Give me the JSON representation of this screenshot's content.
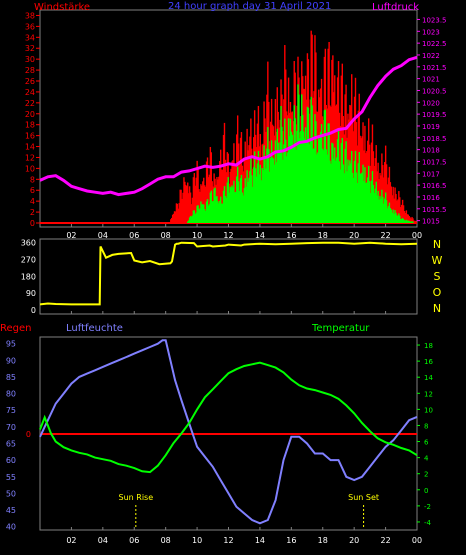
{
  "colors": {
    "background": "#000000",
    "frame": "#808080",
    "red": "#ff0000",
    "green": "#00ff00",
    "magenta": "#ff00ff",
    "yellow": "#ffff00",
    "blue": "#8080ff",
    "blue_label": "#4040ff",
    "tick_label": "#ffffff"
  },
  "chart_data": [
    {
      "type": "bar",
      "title": "24 hour graph day 31 April 2021",
      "left_axis_label": "Windstärke",
      "right_axis_label": "Luftdruck",
      "x_ticks": [
        "02",
        "04",
        "06",
        "08",
        "10",
        "12",
        "14",
        "16",
        "18",
        "20",
        "22",
        "00"
      ],
      "xlim": [
        0,
        24
      ],
      "y_left_ticks": [
        "0",
        "2",
        "4",
        "6",
        "8",
        "10",
        "12",
        "14",
        "16",
        "18",
        "20",
        "22",
        "24",
        "26",
        "28",
        "30",
        "32",
        "34",
        "36",
        "38"
      ],
      "ylim_left": [
        0,
        39
      ],
      "y_right_ticks": [
        "1015",
        "1015.5",
        "1016",
        "1016.5",
        "1017",
        "1017.5",
        "1018",
        "1018.5",
        "1019",
        "1019.5",
        "1020",
        "1020.5",
        "1021",
        "1021.5",
        "1022",
        "1022.5",
        "1023",
        "1023.5"
      ],
      "ylim_right": [
        1014.9,
        1023.9
      ],
      "series": [
        {
          "kind": "wind_gust_red",
          "x": [
            0,
            8.2,
            8.5,
            8.8,
            9.0,
            9.3,
            9.6,
            9.9,
            10.2,
            10.5,
            10.8,
            11.1,
            11.4,
            11.7,
            12.0,
            12.3,
            12.6,
            12.9,
            13.2,
            13.5,
            13.8,
            14.1,
            14.4,
            14.7,
            15.0,
            15.3,
            15.6,
            15.9,
            16.2,
            16.5,
            16.8,
            17.1,
            17.4,
            17.7,
            18.0,
            18.3,
            18.6,
            18.9,
            19.2,
            19.5,
            19.8,
            20.1,
            20.4,
            20.7,
            21.0,
            21.3,
            21.6,
            21.9,
            22.2,
            22.5,
            22.8,
            23.1,
            23.4,
            24
          ],
          "y": [
            0,
            0,
            3,
            5,
            8,
            11,
            6,
            13,
            9,
            12,
            15,
            10,
            14,
            19,
            13,
            17,
            21,
            15,
            23,
            18,
            25,
            20,
            31,
            24,
            30,
            27,
            35,
            29,
            33,
            30,
            38,
            36,
            39,
            32,
            34,
            35,
            38,
            33,
            30,
            28,
            31,
            26,
            24,
            21,
            19,
            17,
            13,
            15,
            11,
            8,
            6,
            4,
            2,
            0
          ]
        },
        {
          "kind": "wind_mean_green",
          "x": [
            0,
            9.3,
            9.6,
            9.9,
            10.2,
            10.5,
            10.8,
            11.1,
            11.4,
            11.7,
            12.0,
            12.3,
            12.6,
            12.9,
            13.2,
            13.5,
            13.8,
            14.1,
            14.4,
            14.7,
            15.0,
            15.3,
            15.6,
            15.9,
            16.2,
            16.5,
            16.8,
            17.1,
            17.4,
            17.7,
            18.0,
            18.3,
            18.6,
            18.9,
            19.2,
            19.5,
            19.8,
            20.1,
            20.4,
            20.7,
            21.0,
            21.3,
            21.6,
            21.9,
            22.2,
            22.5,
            23.0,
            24
          ],
          "y": [
            0,
            0,
            2,
            3,
            5,
            4,
            6,
            8,
            5,
            7,
            10,
            9,
            11,
            8,
            13,
            12,
            15,
            14,
            18,
            16,
            20,
            22,
            19,
            25,
            23,
            28,
            24,
            26,
            22,
            21,
            24,
            20,
            18,
            19,
            16,
            17,
            15,
            13,
            14,
            12,
            10,
            9,
            7,
            6,
            4,
            3,
            1,
            0
          ]
        },
        {
          "kind": "pressure",
          "x": [
            0,
            0.5,
            1.0,
            1.5,
            2.0,
            2.5,
            3.0,
            3.5,
            4.0,
            4.5,
            5.0,
            5.5,
            6.0,
            6.5,
            7.0,
            7.5,
            8.0,
            8.5,
            9.0,
            9.5,
            10.0,
            10.5,
            11.0,
            11.5,
            12.0,
            12.5,
            13.0,
            13.5,
            14.0,
            14.5,
            15.0,
            15.5,
            16.0,
            16.5,
            17.0,
            17.5,
            18.0,
            18.5,
            19.0,
            19.5,
            20.0,
            20.5,
            21.0,
            21.5,
            22.0,
            22.5,
            23.0,
            23.5,
            24.0
          ],
          "y": [
            1016.7,
            1016.85,
            1016.9,
            1016.7,
            1016.45,
            1016.35,
            1016.25,
            1016.2,
            1016.15,
            1016.2,
            1016.1,
            1016.15,
            1016.2,
            1016.35,
            1016.55,
            1016.75,
            1016.85,
            1016.85,
            1017.05,
            1017.1,
            1017.2,
            1017.3,
            1017.25,
            1017.3,
            1017.4,
            1017.35,
            1017.6,
            1017.7,
            1017.6,
            1017.7,
            1017.9,
            1017.95,
            1018.1,
            1018.3,
            1018.35,
            1018.5,
            1018.6,
            1018.7,
            1018.85,
            1018.9,
            1019.3,
            1019.6,
            1020.2,
            1020.7,
            1021.1,
            1021.4,
            1021.55,
            1021.8,
            1021.9
          ]
        }
      ]
    },
    {
      "type": "line",
      "x_ticks": [],
      "xlim": [
        0,
        24
      ],
      "y_ticks": [
        "0",
        "90",
        "180",
        "270",
        "360"
      ],
      "ylim": [
        0,
        380
      ],
      "direction_labels": [
        "N",
        "W",
        "S",
        "O",
        "N"
      ],
      "series": [
        {
          "kind": "wind_direction",
          "x": [
            0,
            0.5,
            1,
            2,
            3,
            3.8,
            3.85,
            4.2,
            4.6,
            5,
            5.8,
            6,
            6.5,
            7,
            7.6,
            8.3,
            8.4,
            8.6,
            8.7,
            8.8,
            9,
            9.8,
            10,
            10.8,
            11,
            11.8,
            12,
            12.8,
            13,
            14,
            15,
            16,
            17,
            18,
            19,
            20,
            21,
            22,
            23,
            24
          ],
          "y": [
            30,
            35,
            32,
            30,
            30,
            30,
            340,
            280,
            295,
            300,
            305,
            265,
            255,
            262,
            245,
            250,
            260,
            350,
            355,
            355,
            360,
            358,
            340,
            345,
            340,
            345,
            350,
            345,
            350,
            355,
            352,
            355,
            358,
            360,
            360,
            355,
            360,
            355,
            352,
            355
          ]
        }
      ]
    },
    {
      "type": "line",
      "left_axis_label_a": "Regen",
      "left_axis_label_b": "Luftfeuchte",
      "right_axis_label": "Temperatur",
      "x_ticks": [
        "02",
        "04",
        "06",
        "08",
        "10",
        "12",
        "14",
        "16",
        "18",
        "20",
        "22",
        "00"
      ],
      "xlim": [
        0,
        24
      ],
      "y_left_ticks": [
        "40",
        "45",
        "50",
        "55",
        "60",
        "65",
        "70",
        "75",
        "80",
        "85",
        "90",
        "95"
      ],
      "ylim_left": [
        39,
        97
      ],
      "y_right_ticks": [
        "-4",
        "-2",
        "0",
        "2",
        "4",
        "6",
        "8",
        "10",
        "12",
        "14",
        "16",
        "18"
      ],
      "ylim_right": [
        -5,
        19
      ],
      "rain_marker": "0",
      "annotations": [
        {
          "label": "Sun Rise",
          "x": 6.1
        },
        {
          "label": "Sun Set",
          "x": 20.6
        }
      ],
      "series": [
        {
          "kind": "humidity",
          "x": [
            0,
            0.3,
            0.6,
            1.0,
            1.5,
            2.0,
            2.5,
            3.0,
            3.5,
            4.0,
            4.5,
            5.0,
            5.5,
            6.0,
            6.5,
            7.0,
            7.5,
            7.8,
            8.0,
            8.3,
            8.6,
            9.0,
            9.5,
            10.0,
            10.5,
            11.0,
            11.5,
            12.0,
            12.5,
            13.0,
            13.5,
            14.0,
            14.5,
            15.0,
            15.5,
            16.0,
            16.5,
            17.0,
            17.5,
            18.0,
            18.5,
            19.0,
            19.5,
            20.0,
            20.5,
            21.0,
            21.5,
            22.0,
            22.5,
            23.0,
            23.5,
            24.0
          ],
          "y": [
            67,
            70,
            73,
            77,
            80,
            83,
            85,
            86,
            87,
            88,
            89,
            90,
            91,
            92,
            93,
            94,
            95,
            96,
            96,
            90,
            84,
            78,
            71,
            64,
            61,
            58,
            54,
            50,
            46,
            44,
            42,
            41,
            42,
            48,
            60,
            67,
            67,
            65,
            62,
            62,
            60,
            60,
            55,
            54,
            55,
            58,
            61,
            64,
            66,
            69,
            72,
            73
          ]
        },
        {
          "kind": "temperature",
          "x": [
            0,
            0.3,
            0.7,
            1.0,
            1.5,
            2.0,
            2.5,
            3.0,
            3.5,
            4.0,
            4.5,
            5.0,
            5.5,
            6.0,
            6.5,
            7.0,
            7.5,
            8.0,
            8.5,
            9.0,
            9.5,
            10.0,
            10.5,
            11.0,
            11.5,
            12.0,
            12.5,
            13.0,
            13.5,
            14.0,
            14.5,
            15.0,
            15.5,
            16.0,
            16.5,
            17.0,
            17.5,
            18.0,
            18.5,
            19.0,
            19.5,
            20.0,
            20.5,
            21.0,
            21.5,
            22.0,
            22.5,
            23.0,
            23.5,
            24.0
          ],
          "y": [
            7.5,
            9.0,
            7.0,
            6.0,
            5.3,
            4.9,
            4.6,
            4.4,
            4.0,
            3.8,
            3.6,
            3.2,
            3.0,
            2.7,
            2.3,
            2.2,
            3.0,
            4.3,
            5.8,
            7.0,
            8.3,
            10.0,
            11.5,
            12.5,
            13.5,
            14.5,
            15.0,
            15.4,
            15.6,
            15.8,
            15.5,
            15.2,
            14.6,
            13.7,
            13.0,
            12.6,
            12.4,
            12.1,
            11.8,
            11.3,
            10.5,
            9.5,
            8.3,
            7.3,
            6.4,
            5.9,
            5.6,
            5.2,
            4.9,
            4.3
          ]
        }
      ]
    }
  ]
}
